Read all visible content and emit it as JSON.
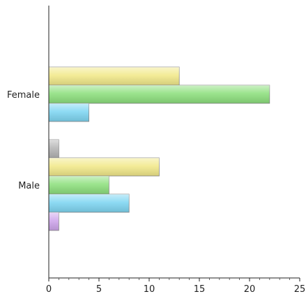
{
  "chart_data": {
    "type": "bar",
    "orientation": "horizontal",
    "categories": [
      "Female",
      "Male"
    ],
    "series": [
      {
        "color": "#f2e98a",
        "values": [
          13,
          11
        ]
      },
      {
        "color": "#8ee07e",
        "values": [
          22,
          6
        ]
      },
      {
        "color": "#7fd6f2",
        "values": [
          4,
          8
        ]
      },
      {
        "color": "#b5b5b5",
        "values": [
          0,
          1
        ]
      },
      {
        "color": "#cfa6ec",
        "values": [
          0,
          1
        ]
      }
    ],
    "xlim": [
      0,
      25
    ],
    "xticks": [
      "0",
      "5",
      "10",
      "15",
      "20",
      "25"
    ],
    "grid": false,
    "legend": "none"
  }
}
